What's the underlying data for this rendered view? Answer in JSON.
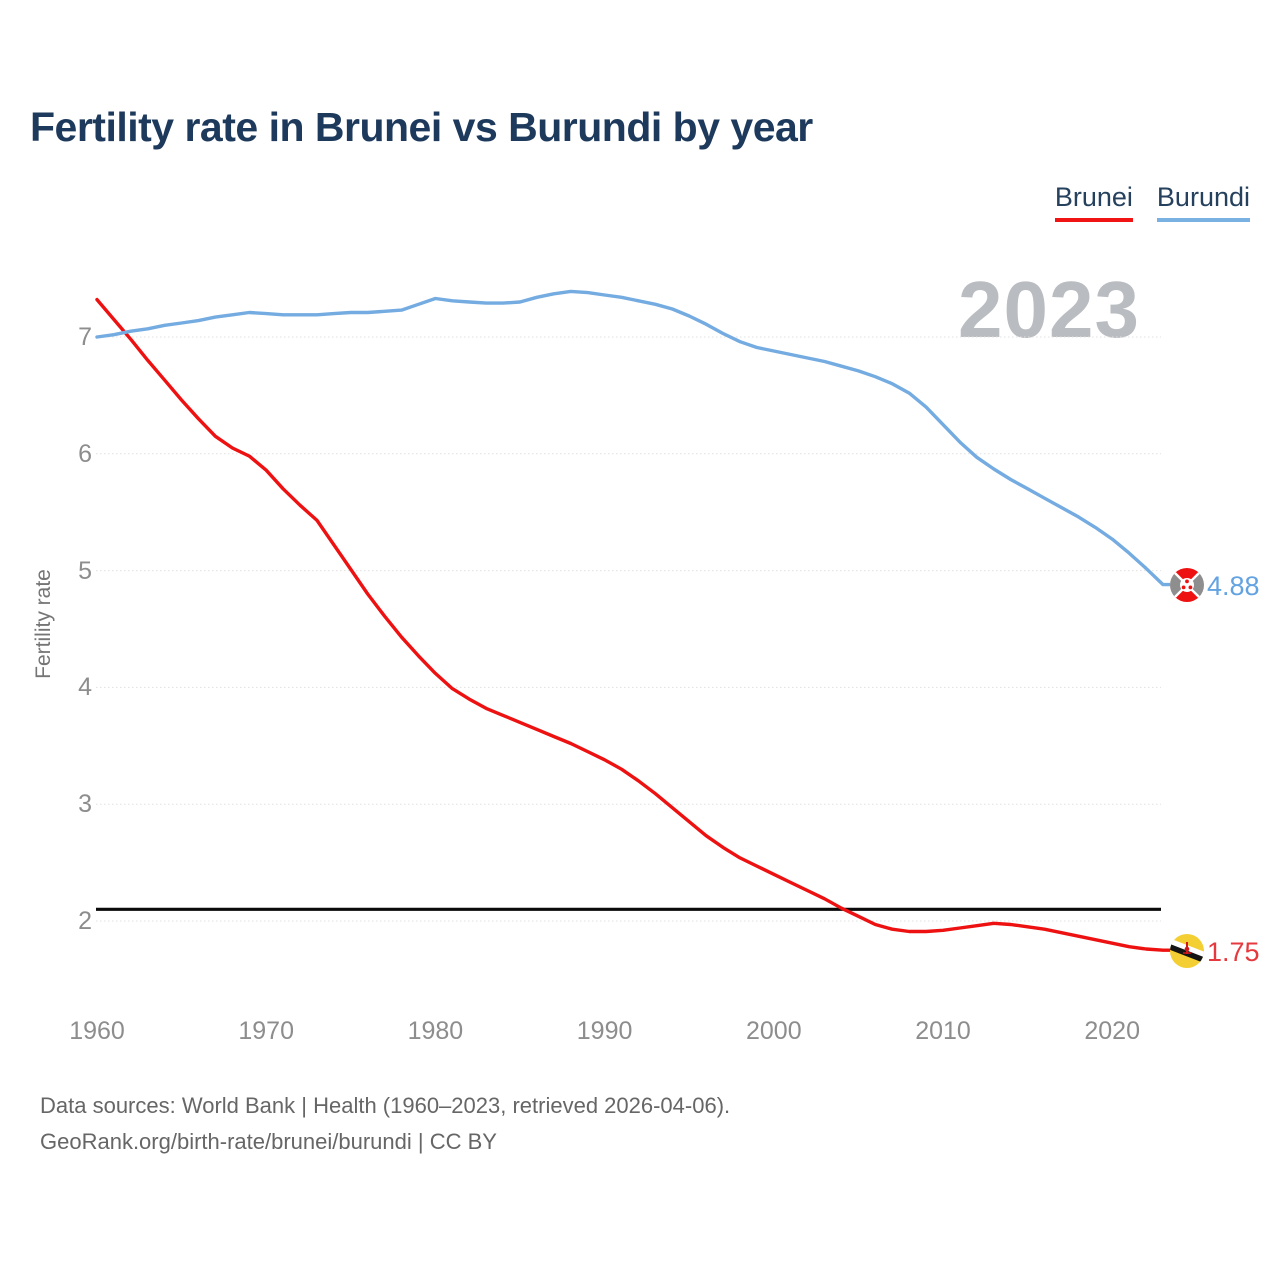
{
  "title": "Fertility rate in Brunei vs Burundi by year",
  "legend": [
    {
      "label": "Brunei",
      "color": "#f01414"
    },
    {
      "label": "Burundi",
      "color": "#79b1e3"
    }
  ],
  "watermark": "2023",
  "y_axis": {
    "label": "Fertility rate",
    "ticks": [
      2,
      3,
      4,
      5,
      6,
      7
    ]
  },
  "x_axis": {
    "ticks": [
      1960,
      1970,
      1980,
      1990,
      2000,
      2010,
      2020
    ]
  },
  "end_labels": [
    {
      "series": "Burundi",
      "value": "4.88",
      "color": "#63a3e1"
    },
    {
      "series": "Brunei",
      "value": "1.75",
      "color": "#e6393d"
    }
  ],
  "footer": {
    "line1": "Data sources: World Bank | Health (1960–2023, retrieved 2026-04-06).",
    "line2": "GeoRank.org/birth-rate/brunei/burundi | CC BY"
  },
  "chart_data": {
    "type": "line",
    "title": "Fertility rate in Brunei vs Burundi by year",
    "xlabel": "",
    "ylabel": "Fertility rate",
    "xlim": [
      1960,
      2023
    ],
    "ylim": [
      1.5,
      7.5
    ],
    "grid": "horizontal-dotted",
    "legend_position": "top-right",
    "reference_line": {
      "value": 2.1,
      "color": "#0a0a0a"
    },
    "x": [
      1960,
      1961,
      1962,
      1963,
      1964,
      1965,
      1966,
      1967,
      1968,
      1969,
      1970,
      1971,
      1972,
      1973,
      1974,
      1975,
      1976,
      1977,
      1978,
      1979,
      1980,
      1981,
      1982,
      1983,
      1984,
      1985,
      1986,
      1987,
      1988,
      1989,
      1990,
      1991,
      1992,
      1993,
      1994,
      1995,
      1996,
      1997,
      1998,
      1999,
      2000,
      2001,
      2002,
      2003,
      2004,
      2005,
      2006,
      2007,
      2008,
      2009,
      2010,
      2011,
      2012,
      2013,
      2014,
      2015,
      2016,
      2017,
      2018,
      2019,
      2020,
      2021,
      2022,
      2023
    ],
    "series": [
      {
        "name": "Brunei",
        "color": "#ee1111",
        "end_value": 1.75,
        "values": [
          7.32,
          7.15,
          6.98,
          6.8,
          6.63,
          6.46,
          6.3,
          6.15,
          6.05,
          5.98,
          5.86,
          5.7,
          5.56,
          5.43,
          5.22,
          5.01,
          4.8,
          4.61,
          4.43,
          4.27,
          4.12,
          3.99,
          3.9,
          3.82,
          3.76,
          3.7,
          3.64,
          3.58,
          3.52,
          3.45,
          3.38,
          3.3,
          3.2,
          3.09,
          2.97,
          2.85,
          2.73,
          2.63,
          2.54,
          2.47,
          2.4,
          2.33,
          2.26,
          2.19,
          2.11,
          2.04,
          1.97,
          1.93,
          1.91,
          1.91,
          1.92,
          1.94,
          1.96,
          1.98,
          1.97,
          1.95,
          1.93,
          1.9,
          1.87,
          1.84,
          1.81,
          1.78,
          1.76,
          1.75
        ]
      },
      {
        "name": "Burundi",
        "color": "#74abe0",
        "end_value": 4.88,
        "values": [
          7.0,
          7.02,
          7.05,
          7.07,
          7.1,
          7.12,
          7.14,
          7.17,
          7.19,
          7.21,
          7.2,
          7.19,
          7.19,
          7.19,
          7.2,
          7.21,
          7.21,
          7.22,
          7.23,
          7.28,
          7.33,
          7.31,
          7.3,
          7.29,
          7.29,
          7.3,
          7.34,
          7.37,
          7.39,
          7.38,
          7.36,
          7.34,
          7.31,
          7.28,
          7.24,
          7.18,
          7.11,
          7.03,
          6.96,
          6.91,
          6.88,
          6.85,
          6.82,
          6.79,
          6.75,
          6.71,
          6.66,
          6.6,
          6.52,
          6.4,
          6.25,
          6.1,
          5.97,
          5.87,
          5.78,
          5.7,
          5.62,
          5.54,
          5.46,
          5.37,
          5.27,
          5.15,
          5.02,
          4.88
        ]
      }
    ]
  }
}
